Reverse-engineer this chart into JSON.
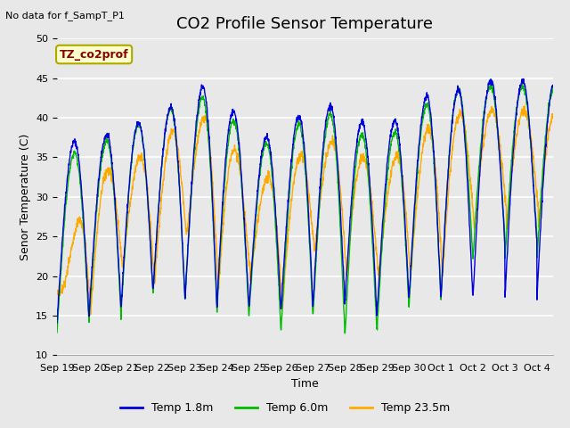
{
  "title": "CO2 Profile Sensor Temperature",
  "subtitle": "No data for f_SampT_P1",
  "xlabel": "Time",
  "ylabel": "Senor Temperature (C)",
  "ylim": [
    10,
    50
  ],
  "yticks": [
    10,
    15,
    20,
    25,
    30,
    35,
    40,
    45,
    50
  ],
  "xtick_labels": [
    "Sep 19",
    "Sep 20",
    "Sep 21",
    "Sep 22",
    "Sep 23",
    "Sep 24",
    "Sep 25",
    "Sep 26",
    "Sep 27",
    "Sep 28",
    "Sep 29",
    "Sep 30",
    "Oct 1",
    "Oct 2",
    "Oct 3",
    "Oct 4"
  ],
  "legend_label": "TZ_co2prof",
  "series_labels": [
    "Temp 1.8m",
    "Temp 6.0m",
    "Temp 23.5m"
  ],
  "series_colors": [
    "#0000dd",
    "#00bb00",
    "#ffaa00"
  ],
  "plot_bg_color": "#e8e8e8",
  "fig_bg_color": "#e8e8e8",
  "grid_color": "#ffffff",
  "title_fontsize": 13,
  "label_fontsize": 9,
  "tick_fontsize": 8,
  "n_days": 15.5,
  "n_points": 2000
}
